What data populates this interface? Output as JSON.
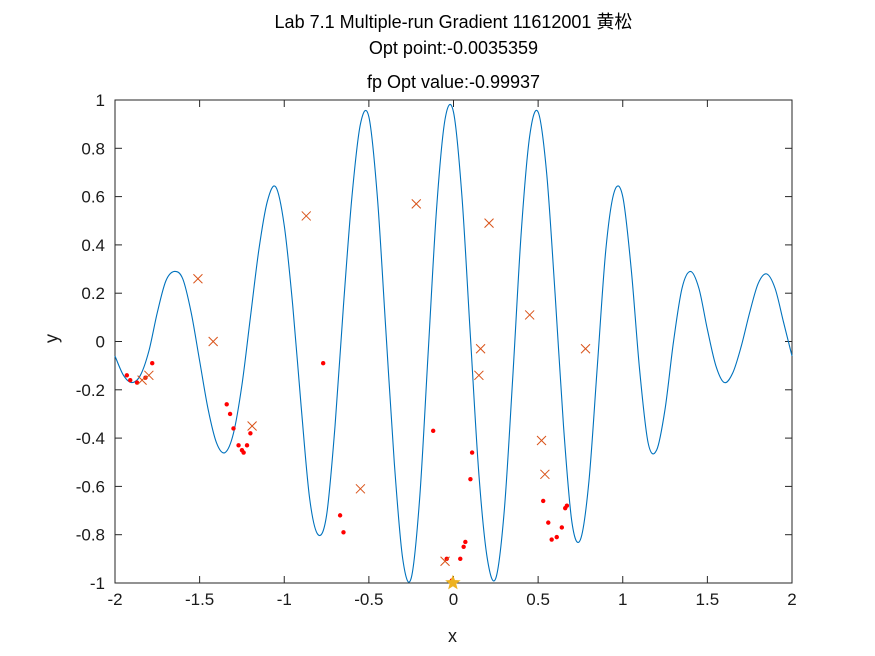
{
  "figure": {
    "title_lines": [
      "Lab 7.1 Multiple-run Gradient 11612001 黄松",
      "Opt point:-0.0035359",
      "fp Opt value:-0.99937"
    ]
  },
  "chart_data": {
    "type": "line",
    "title": "Lab 7.1 Multiple-run Gradient 11612001 黄松",
    "subtitle": [
      "Opt point:-0.0035359",
      "fp Opt value:-0.99937"
    ],
    "xlabel": "x",
    "ylabel": "y",
    "xlim": [
      -2,
      2
    ],
    "ylim": [
      -1,
      1
    ],
    "x_ticks": [
      -2,
      -1.5,
      -1,
      -0.5,
      0,
      0.5,
      1,
      1.5,
      2
    ],
    "x_tick_labels": [
      "-2",
      "-1.5",
      "-1",
      "-0.5",
      "0",
      "0.5",
      "1",
      "1.5",
      "2"
    ],
    "y_ticks": [
      -1,
      -0.8,
      -0.6,
      -0.4,
      -0.2,
      0,
      0.2,
      0.4,
      0.6,
      0.8,
      1
    ],
    "y_tick_labels": [
      "-1",
      "-0.8",
      "-0.6",
      "-0.4",
      "-0.2",
      "0",
      "0.2",
      "0.4",
      "0.6",
      "0.8",
      "1"
    ],
    "grid": false,
    "curve": {
      "color": "#0072BD",
      "x": [
        -2.0,
        -1.95,
        -1.9,
        -1.85,
        -1.8,
        -1.75,
        -1.7,
        -1.65,
        -1.6,
        -1.55,
        -1.5,
        -1.45,
        -1.4,
        -1.35,
        -1.3,
        -1.25,
        -1.2,
        -1.15,
        -1.1,
        -1.05,
        -1.0,
        -0.95,
        -0.9,
        -0.85,
        -0.8,
        -0.75,
        -0.7,
        -0.65,
        -0.6,
        -0.55,
        -0.5,
        -0.45,
        -0.4,
        -0.35,
        -0.3,
        -0.25,
        -0.2,
        -0.15,
        -0.1,
        -0.05,
        0.0,
        0.05,
        0.1,
        0.15,
        0.2,
        0.25,
        0.3,
        0.35,
        0.4,
        0.45,
        0.5,
        0.55,
        0.6,
        0.65,
        0.7,
        0.75,
        0.8,
        0.85,
        0.9,
        0.95,
        1.0,
        1.05,
        1.1,
        1.15,
        1.2,
        1.25,
        1.3,
        1.35,
        1.4,
        1.45,
        1.5,
        1.55,
        1.6,
        1.65,
        1.7,
        1.75,
        1.8,
        1.85,
        1.9,
        1.95,
        2.0
      ],
      "y": [
        -0.06,
        -0.14,
        -0.17,
        -0.14,
        -0.04,
        0.12,
        0.25,
        0.29,
        0.26,
        0.12,
        -0.08,
        -0.28,
        -0.42,
        -0.46,
        -0.38,
        -0.18,
        0.1,
        0.38,
        0.58,
        0.64,
        0.48,
        0.15,
        -0.27,
        -0.65,
        -0.8,
        -0.72,
        -0.35,
        0.15,
        0.6,
        0.9,
        0.93,
        0.6,
        0.05,
        -0.5,
        -0.9,
        -0.98,
        -0.65,
        -0.05,
        0.55,
        0.92,
        0.95,
        0.6,
        0.02,
        -0.55,
        -0.9,
        -0.98,
        -0.7,
        -0.15,
        0.45,
        0.85,
        0.95,
        0.7,
        0.2,
        -0.35,
        -0.75,
        -0.82,
        -0.58,
        -0.1,
        0.38,
        0.62,
        0.6,
        0.3,
        -0.12,
        -0.42,
        -0.45,
        -0.28,
        0.0,
        0.22,
        0.29,
        0.22,
        0.05,
        -0.1,
        -0.17,
        -0.13,
        -0.02,
        0.12,
        0.24,
        0.28,
        0.22,
        0.08,
        -0.06
      ]
    },
    "start_points": {
      "marker": "x",
      "color": "#D95319",
      "x": [
        -1.84,
        -1.8,
        -1.51,
        -1.42,
        -1.19,
        -0.87,
        -0.55,
        -0.22,
        -0.05,
        0.16,
        0.15,
        0.21,
        0.45,
        0.52,
        0.54,
        0.78
      ],
      "y": [
        -0.16,
        -0.14,
        0.26,
        0.0,
        -0.35,
        0.52,
        -0.61,
        0.57,
        -0.91,
        -0.03,
        -0.14,
        0.49,
        0.11,
        -0.41,
        -0.55,
        -0.03
      ]
    },
    "iterate_points": {
      "marker": "dot",
      "color": "#FF0000",
      "x": [
        -1.93,
        -1.91,
        -1.87,
        -1.82,
        -1.78,
        -1.34,
        -1.32,
        -1.3,
        -1.27,
        -1.25,
        -1.24,
        -1.22,
        -1.2,
        -0.77,
        -0.67,
        -0.65,
        -0.12,
        -0.04,
        -0.01,
        0.04,
        0.06,
        0.07,
        0.1,
        0.11,
        0.53,
        0.56,
        0.58,
        0.61,
        0.64,
        0.66,
        0.67
      ],
      "y": [
        -0.14,
        -0.16,
        -0.17,
        -0.15,
        -0.09,
        -0.26,
        -0.3,
        -0.36,
        -0.43,
        -0.45,
        -0.46,
        -0.43,
        -0.38,
        -0.09,
        -0.72,
        -0.79,
        -0.37,
        -0.9,
        -0.99,
        -0.9,
        -0.85,
        -0.83,
        -0.57,
        -0.46,
        -0.66,
        -0.75,
        -0.82,
        -0.81,
        -0.77,
        -0.69,
        -0.68
      ]
    },
    "optimum": {
      "marker": "star",
      "color": "#EDB120",
      "x": -0.0035359,
      "y": -0.99937
    }
  }
}
